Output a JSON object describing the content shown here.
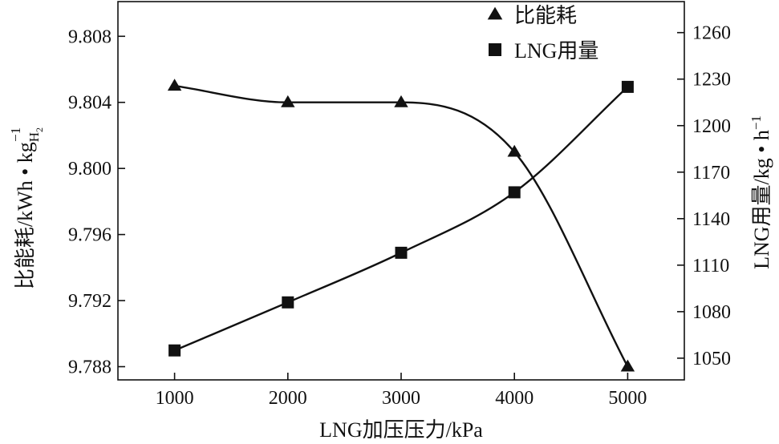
{
  "chart_data": {
    "type": "line",
    "x": [
      1000,
      2000,
      3000,
      4000,
      5000
    ],
    "xlabel": "LNG加压压力/kPa",
    "xlim": [
      500,
      5500
    ],
    "xticks": [
      "1000",
      "2000",
      "3000",
      "4000",
      "5000"
    ],
    "y_left": {
      "label": "比能耗/kWh • kg",
      "label_sub": "H",
      "label_sub2": "2",
      "label_sup": "−1",
      "lim": [
        9.7872,
        9.8101
      ],
      "ticks": [
        "9.788",
        "9.792",
        "9.796",
        "9.800",
        "9.804",
        "9.808"
      ]
    },
    "y_right": {
      "label": "LNG用量/kg • h",
      "label_sup": "−1",
      "lim": [
        1036,
        1280
      ],
      "ticks": [
        "1050",
        "1080",
        "1110",
        "1140",
        "1170",
        "1200",
        "1230",
        "1260"
      ]
    },
    "series": [
      {
        "name": "比能耗",
        "axis": "left",
        "marker": "triangle",
        "values": [
          9.805,
          9.804,
          9.804,
          9.801,
          9.788
        ]
      },
      {
        "name": "LNG用量",
        "axis": "right",
        "marker": "square",
        "values": [
          1055,
          1086,
          1118,
          1157,
          1225
        ]
      }
    ],
    "grid": false,
    "legend_position": "top-right",
    "color": "#111111"
  }
}
